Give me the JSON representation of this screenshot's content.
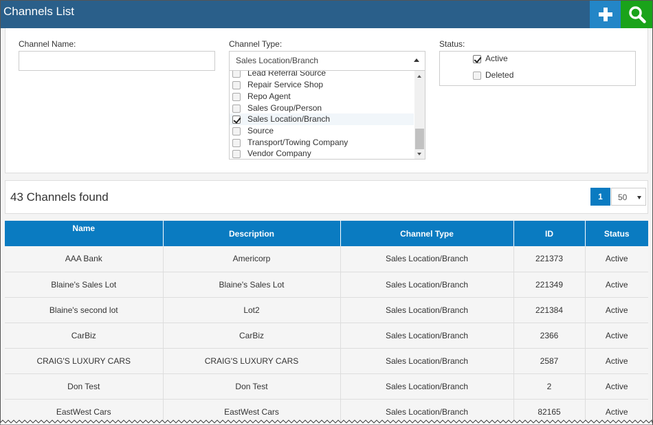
{
  "header": {
    "title": "Channels List",
    "add_icon": "plus-icon",
    "search_icon": "search-icon",
    "colors": {
      "title_bg": "#2a5f8a",
      "add_bg": "#2386c7",
      "search_bg": "#1aa31a"
    }
  },
  "filters": {
    "name_label": "Channel Name:",
    "name_value": "",
    "type_label": "Channel Type:",
    "type_selected": "Sales Location/Branch",
    "type_options": [
      {
        "label": "Lead Referral Source",
        "checked": false
      },
      {
        "label": "Repair Service Shop",
        "checked": false
      },
      {
        "label": "Repo Agent",
        "checked": false
      },
      {
        "label": "Sales Group/Person",
        "checked": false
      },
      {
        "label": "Sales Location/Branch",
        "checked": true
      },
      {
        "label": "Source",
        "checked": false
      },
      {
        "label": "Transport/Towing Company",
        "checked": false
      },
      {
        "label": "Vendor Company",
        "checked": false
      }
    ],
    "status_label": "Status:",
    "status_options": [
      {
        "label": "Active",
        "checked": true
      },
      {
        "label": "Deleted",
        "checked": false
      }
    ]
  },
  "results": {
    "count_text": "43 Channels found",
    "current_page": "1",
    "page_size": "50"
  },
  "table": {
    "columns": [
      "Name",
      "Description",
      "Channel Type",
      "ID",
      "Status"
    ],
    "rows": [
      [
        "AAA Bank",
        "Americorp",
        "Sales Location/Branch",
        "221373",
        "Active"
      ],
      [
        "Blaine's Sales Lot",
        "Blaine's Sales Lot",
        "Sales Location/Branch",
        "221349",
        "Active"
      ],
      [
        "Blaine's second lot",
        "Lot2",
        "Sales Location/Branch",
        "221384",
        "Active"
      ],
      [
        "CarBiz",
        "CarBiz",
        "Sales Location/Branch",
        "2366",
        "Active"
      ],
      [
        "CRAIG'S LUXURY CARS",
        "CRAIG'S LUXURY CARS",
        "Sales Location/Branch",
        "2587",
        "Active"
      ],
      [
        "Don Test",
        "Don Test",
        "Sales Location/Branch",
        "2",
        "Active"
      ],
      [
        "EastWest Cars",
        "EastWest Cars",
        "Sales Location/Branch",
        "82165",
        "Active"
      ]
    ]
  }
}
